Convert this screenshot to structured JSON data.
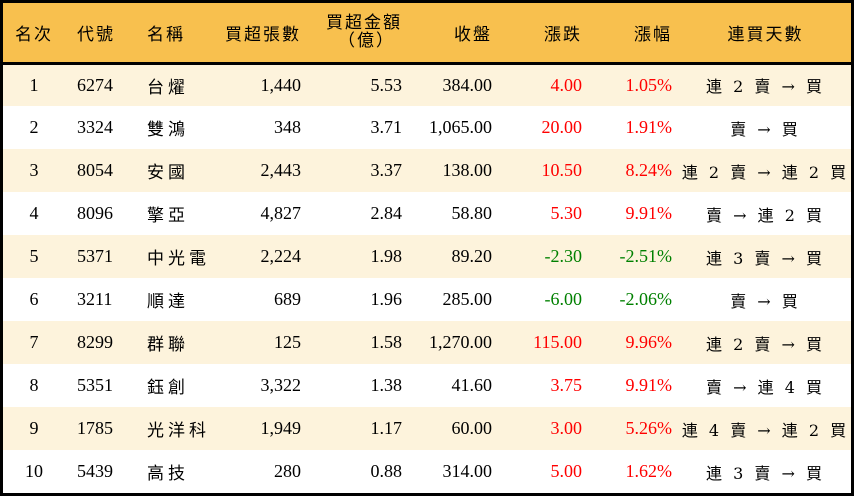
{
  "table": {
    "headers": {
      "rank": "名次",
      "code": "代號",
      "name": "名稱",
      "net_buy_lots": "買超張數",
      "net_buy_amount_line1": "買超金額",
      "net_buy_amount_line2": "（億）",
      "close": "收盤",
      "change": "漲跌",
      "change_pct": "漲幅",
      "buy_streak": "連買天數"
    },
    "colors": {
      "header_bg": "#f8c04e",
      "odd_row_bg": "#fdf3dc",
      "even_row_bg": "#ffffff",
      "up": "#ff0000",
      "down": "#008000"
    },
    "rows": [
      {
        "rank": "1",
        "code": "6274",
        "name": "台燿",
        "lots": "1,440",
        "amount": "5.53",
        "close": "384.00",
        "change": "4.00",
        "pct": "1.05%",
        "streak": "連 2 賣 → 買",
        "dir": "up"
      },
      {
        "rank": "2",
        "code": "3324",
        "name": "雙鴻",
        "lots": "348",
        "amount": "3.71",
        "close": "1,065.00",
        "change": "20.00",
        "pct": "1.91%",
        "streak": "賣 → 買",
        "dir": "up"
      },
      {
        "rank": "3",
        "code": "8054",
        "name": "安國",
        "lots": "2,443",
        "amount": "3.37",
        "close": "138.00",
        "change": "10.50",
        "pct": "8.24%",
        "streak": "連 2 賣 → 連 2 買",
        "dir": "up"
      },
      {
        "rank": "4",
        "code": "8096",
        "name": "擎亞",
        "lots": "4,827",
        "amount": "2.84",
        "close": "58.80",
        "change": "5.30",
        "pct": "9.91%",
        "streak": "賣 → 連 2 買",
        "dir": "up"
      },
      {
        "rank": "5",
        "code": "5371",
        "name": "中光電",
        "lots": "2,224",
        "amount": "1.98",
        "close": "89.20",
        "change": "-2.30",
        "pct": "-2.51%",
        "streak": "連 3 賣 → 買",
        "dir": "down"
      },
      {
        "rank": "6",
        "code": "3211",
        "name": "順達",
        "lots": "689",
        "amount": "1.96",
        "close": "285.00",
        "change": "-6.00",
        "pct": "-2.06%",
        "streak": "賣 → 買",
        "dir": "down"
      },
      {
        "rank": "7",
        "code": "8299",
        "name": "群聯",
        "lots": "125",
        "amount": "1.58",
        "close": "1,270.00",
        "change": "115.00",
        "pct": "9.96%",
        "streak": "連 2 賣 → 買",
        "dir": "up"
      },
      {
        "rank": "8",
        "code": "5351",
        "name": "鈺創",
        "lots": "3,322",
        "amount": "1.38",
        "close": "41.60",
        "change": "3.75",
        "pct": "9.91%",
        "streak": "賣 → 連 4 買",
        "dir": "up"
      },
      {
        "rank": "9",
        "code": "1785",
        "name": "光洋科",
        "lots": "1,949",
        "amount": "1.17",
        "close": "60.00",
        "change": "3.00",
        "pct": "5.26%",
        "streak": "連 4 賣 → 連 2 買",
        "dir": "up"
      },
      {
        "rank": "10",
        "code": "5439",
        "name": "高技",
        "lots": "280",
        "amount": "0.88",
        "close": "314.00",
        "change": "5.00",
        "pct": "1.62%",
        "streak": "連 3 賣 → 買",
        "dir": "up"
      }
    ]
  }
}
